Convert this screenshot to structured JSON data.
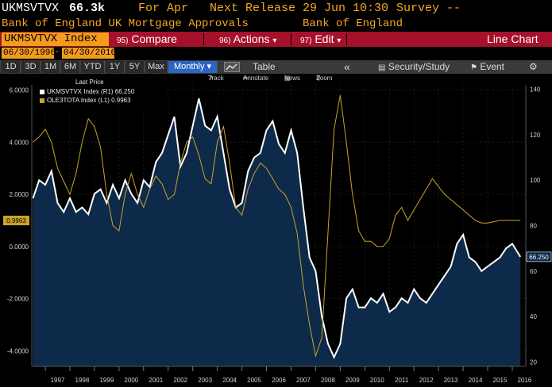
{
  "header": {
    "ticker": "UKMSVTVX",
    "last_value": "66.3k",
    "for_label": "For Apr",
    "next_release": "Next Release 29 Jun 10:30",
    "survey": "Survey --",
    "description": "Bank of England UK Mortgage Approvals",
    "source": "Bank of England"
  },
  "toolbar": {
    "ticker_index": "UKMSVTVX Index",
    "compare_num": "95)",
    "compare_label": "Compare",
    "actions_num": "96)",
    "actions_label": "Actions",
    "edit_num": "97)",
    "edit_label": "Edit",
    "chart_type": "Line Chart"
  },
  "dates": {
    "start": "06/30/1996",
    "end": "04/30/2016"
  },
  "periods": [
    "1D",
    "3D",
    "1M",
    "6M",
    "YTD",
    "1Y",
    "5Y",
    "Max"
  ],
  "frequency": "Monthly",
  "tools": {
    "table": "Table",
    "security_study": "Security/Study",
    "event": "Event"
  },
  "subtools": {
    "track": "Track",
    "annotate": "Annotate",
    "news": "News",
    "zoom": "Zoom"
  },
  "legend": {
    "header": "Last Price",
    "series1": "UKMSVTVX Index (R1) 66.250",
    "series2": "OLE3TOTA Index (L1)   0.9963"
  },
  "colors": {
    "series1": "#ffffff",
    "series2": "#c8a42a",
    "area": "#0e2a4a",
    "accent": "#f29b1d",
    "toolbar": "#a5102a",
    "monthly": "#2c66c4"
  },
  "chart_data": {
    "type": "line",
    "x_tick_labels": [
      "1997",
      "1998",
      "1999",
      "2000",
      "2001",
      "2002",
      "2003",
      "2004",
      "2005",
      "2006",
      "2007",
      "2008",
      "2009",
      "2010",
      "2011",
      "2012",
      "2013",
      "2014",
      "2015",
      "2016"
    ],
    "left_axis": {
      "ticks": [
        6.0,
        4.0,
        2.0,
        0.0,
        -2.0,
        -4.0
      ],
      "tick_labels": [
        "6.0000",
        "4.0000",
        "2.0000",
        "0.0000",
        "-2.0000",
        "-4.0000"
      ],
      "range": [
        -4.6,
        6.2
      ]
    },
    "right_axis": {
      "ticks": [
        140,
        120,
        100,
        80,
        60,
        40,
        20
      ],
      "range": [
        18,
        142
      ]
    },
    "last_labels": {
      "left": "0.9963",
      "right": "66.250"
    },
    "series": [
      {
        "name": "UKMSVTVX Index (R1)",
        "axis": "right",
        "style": "area",
        "x": [
          1996.5,
          1996.75,
          1997.0,
          1997.25,
          1997.5,
          1997.75,
          1998.0,
          1998.25,
          1998.5,
          1998.75,
          1999.0,
          1999.25,
          1999.5,
          1999.75,
          2000.0,
          2000.25,
          2000.5,
          2000.75,
          2001.0,
          2001.25,
          2001.5,
          2001.75,
          2002.0,
          2002.25,
          2002.5,
          2002.75,
          2003.0,
          2003.25,
          2003.5,
          2003.75,
          2004.0,
          2004.25,
          2004.5,
          2004.75,
          2005.0,
          2005.25,
          2005.5,
          2005.75,
          2006.0,
          2006.25,
          2006.5,
          2006.75,
          2007.0,
          2007.25,
          2007.5,
          2007.75,
          2008.0,
          2008.25,
          2008.5,
          2008.75,
          2009.0,
          2009.25,
          2009.5,
          2009.75,
          2010.0,
          2010.25,
          2010.5,
          2010.75,
          2011.0,
          2011.25,
          2011.5,
          2011.75,
          2012.0,
          2012.25,
          2012.5,
          2012.75,
          2013.0,
          2013.25,
          2013.5,
          2013.75,
          2014.0,
          2014.25,
          2014.5,
          2014.75,
          2015.0,
          2015.25,
          2015.5,
          2015.75,
          2016.0,
          2016.33
        ],
        "values": [
          92,
          100,
          98,
          104,
          90,
          86,
          92,
          86,
          88,
          85,
          94,
          96,
          90,
          98,
          92,
          100,
          94,
          90,
          100,
          97,
          108,
          112,
          120,
          128,
          106,
          112,
          124,
          136,
          124,
          122,
          128,
          112,
          96,
          88,
          90,
          104,
          110,
          112,
          122,
          126,
          116,
          112,
          122,
          112,
          88,
          66,
          60,
          40,
          28,
          22,
          28,
          48,
          52,
          44,
          44,
          48,
          46,
          50,
          42,
          44,
          48,
          46,
          52,
          48,
          46,
          50,
          54,
          58,
          62,
          72,
          76,
          66,
          64,
          60,
          62,
          64,
          66,
          70,
          72,
          66.25
        ]
      },
      {
        "name": "OLE3TOTA Index (L1)",
        "axis": "left",
        "style": "line",
        "x": [
          1996.5,
          1996.75,
          1997.0,
          1997.25,
          1997.5,
          1997.75,
          1998.0,
          1998.25,
          1998.5,
          1998.75,
          1999.0,
          1999.25,
          1999.5,
          1999.75,
          2000.0,
          2000.25,
          2000.5,
          2000.75,
          2001.0,
          2001.25,
          2001.5,
          2001.75,
          2002.0,
          2002.25,
          2002.5,
          2002.75,
          2003.0,
          2003.25,
          2003.5,
          2003.75,
          2004.0,
          2004.25,
          2004.5,
          2004.75,
          2005.0,
          2005.25,
          2005.5,
          2005.75,
          2006.0,
          2006.25,
          2006.5,
          2006.75,
          2007.0,
          2007.25,
          2007.5,
          2007.75,
          2008.0,
          2008.25,
          2008.5,
          2008.75,
          2009.0,
          2009.25,
          2009.5,
          2009.75,
          2010.0,
          2010.25,
          2010.5,
          2010.75,
          2011.0,
          2011.25,
          2011.5,
          2011.75,
          2012.0,
          2012.25,
          2012.5,
          2012.75,
          2013.0,
          2013.25,
          2013.5,
          2013.75,
          2014.0,
          2014.25,
          2014.5,
          2014.75,
          2015.0,
          2015.25,
          2015.5,
          2015.75,
          2016.0,
          2016.33
        ],
        "values": [
          4.0,
          4.2,
          4.5,
          4.0,
          3.0,
          2.5,
          2.0,
          2.8,
          4.0,
          4.9,
          4.6,
          3.8,
          2.0,
          0.8,
          0.6,
          2.0,
          2.8,
          2.0,
          1.5,
          2.2,
          2.7,
          2.4,
          1.8,
          2.0,
          3.2,
          4.0,
          4.2,
          3.5,
          2.6,
          2.4,
          4.0,
          4.6,
          3.2,
          1.5,
          1.2,
          2.2,
          2.8,
          3.2,
          3.0,
          2.6,
          2.2,
          2.0,
          1.5,
          0.5,
          -1.5,
          -3.0,
          -4.2,
          -3.5,
          0.5,
          4.5,
          5.8,
          4.0,
          2.0,
          0.6,
          0.2,
          0.2,
          0.0,
          0.0,
          0.3,
          1.2,
          1.5,
          1.0,
          1.4,
          1.8,
          2.2,
          2.6,
          2.3,
          2.0,
          1.8,
          1.6,
          1.4,
          1.2,
          1.0,
          0.9,
          0.9,
          0.95,
          1.0,
          1.0,
          1.0,
          0.9963
        ]
      }
    ]
  }
}
